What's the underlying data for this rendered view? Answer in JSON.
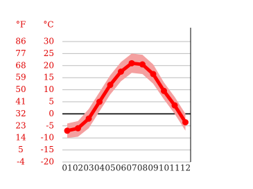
{
  "chart_data": {
    "type": "line",
    "y2_label": "°F",
    "y_label": "°C",
    "categories": [
      "01",
      "02",
      "03",
      "04",
      "05",
      "06",
      "07",
      "08",
      "09",
      "10",
      "11",
      "12"
    ],
    "values": [
      -7,
      -6,
      -2,
      5,
      12,
      17.5,
      21,
      20.5,
      16.5,
      9.5,
      3.5,
      -3.5
    ],
    "band_high": [
      -4,
      -3,
      2,
      9,
      16,
      21.5,
      25,
      24.5,
      20.5,
      13,
      7,
      0
    ],
    "band_low": [
      -10,
      -9.5,
      -6,
      1,
      8,
      13.5,
      17,
      16.5,
      12.5,
      6,
      0,
      -7
    ],
    "color": "#ff0000",
    "band_color": "#f4a0a0",
    "ylim": [
      -20,
      30
    ],
    "yticks": [
      -20,
      -15,
      -10,
      -5,
      0,
      5,
      10,
      15,
      20,
      25,
      30
    ],
    "y2lim": [
      -4,
      86
    ],
    "y2ticks": [
      -4,
      5,
      14,
      23,
      32,
      41,
      50,
      59,
      68,
      77,
      86
    ],
    "grid": true
  }
}
